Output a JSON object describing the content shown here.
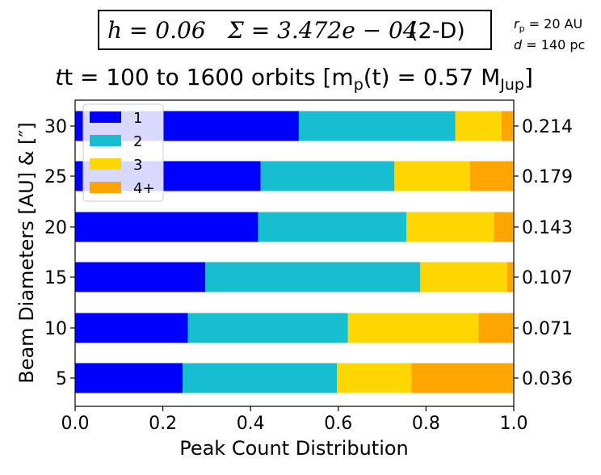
{
  "header": {
    "box_h": "h = 0.06",
    "box_sigma": "Σ = 3.472e − 04",
    "box_dim": "(2-D)",
    "side_rp": "r",
    "side_rp_sub": "p",
    "side_rp_val": " = 20 AU",
    "side_d": "d",
    "side_d_val": " = 140 pc"
  },
  "chart_data": {
    "type": "bar",
    "orientation": "horizontal",
    "stacked": true,
    "title": "t = 100 to 1600 orbits [m",
    "title_sub": "p",
    "title_rest": "(t)  =  0.57 M",
    "title_sub2": "Jup",
    "title_end": "]",
    "xlabel": "Peak Count Distribution",
    "ylabel": "Beam Diameters [AU] & [″]",
    "xlim": [
      0.0,
      1.0
    ],
    "xticks": [
      "0.0",
      "0.2",
      "0.4",
      "0.6",
      "0.8",
      "1.0"
    ],
    "categories": [
      "5",
      "10",
      "15",
      "20",
      "25",
      "30"
    ],
    "right_tick_labels": [
      "0.036",
      "0.071",
      "0.107",
      "0.143",
      "0.179",
      "0.214"
    ],
    "legend_position": "top-left",
    "series": [
      {
        "name": "1",
        "color": "#0000ff",
        "values": [
          0.245,
          0.257,
          0.297,
          0.417,
          0.423,
          0.51
        ]
      },
      {
        "name": "2",
        "color": "#17becf",
        "values": [
          0.352,
          0.365,
          0.49,
          0.338,
          0.305,
          0.357
        ]
      },
      {
        "name": "3",
        "color": "#ffd700",
        "values": [
          0.17,
          0.298,
          0.198,
          0.2,
          0.172,
          0.105
        ]
      },
      {
        "name": "4+",
        "color": "#ffa500",
        "values": [
          0.233,
          0.08,
          0.015,
          0.045,
          0.1,
          0.028
        ]
      }
    ]
  }
}
